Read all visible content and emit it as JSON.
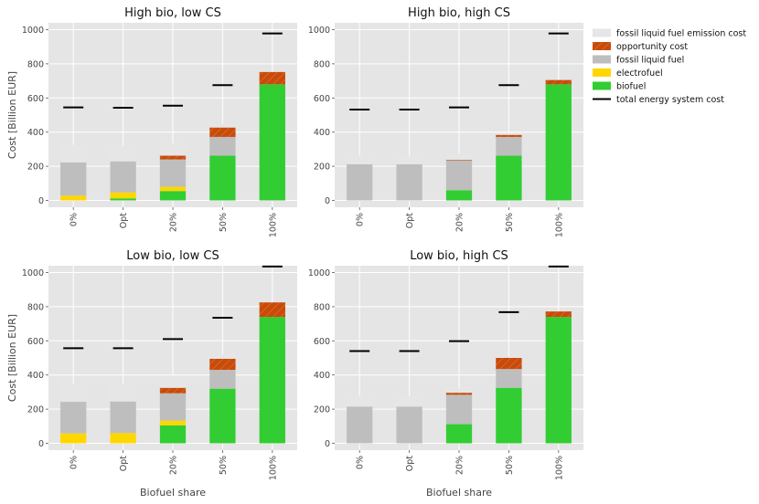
{
  "chart_data": {
    "type": "bar",
    "stacked": true,
    "figure_ylabel": "Cost [Billion EUR]",
    "figure_xlabel": "Biofuel share",
    "categories": [
      "0%",
      "Opt",
      "20%",
      "50%",
      "100%"
    ],
    "legend": [
      {
        "key": "emission",
        "label": "fossil liquid fuel emission cost",
        "color": "#e6e6e6",
        "kind": "patch"
      },
      {
        "key": "opportunity",
        "label": "opportunity cost",
        "color": "#c84b0a",
        "kind": "hatched"
      },
      {
        "key": "fossil",
        "label": "fossil liquid fuel",
        "color": "#bebebe",
        "kind": "patch"
      },
      {
        "key": "electrofuel",
        "label": "electrofuel",
        "color": "#ffd700",
        "kind": "patch"
      },
      {
        "key": "biofuel",
        "label": "biofuel",
        "color": "#32cd32",
        "kind": "patch"
      },
      {
        "key": "total",
        "label": "total energy system cost",
        "color": "#000000",
        "kind": "line"
      }
    ],
    "panels": [
      {
        "title": "High bio, low CS",
        "ylim": [
          -40,
          1040
        ],
        "yticks": [
          0,
          200,
          400,
          600,
          800,
          1000
        ],
        "stacks": {
          "biofuel": [
            0,
            12,
            55,
            262,
            680
          ],
          "electrofuel": [
            28,
            35,
            25,
            0,
            0
          ],
          "fossil": [
            195,
            182,
            160,
            110,
            0
          ],
          "opportunity": [
            0,
            0,
            22,
            55,
            72
          ],
          "emission": [
            102,
            92,
            72,
            22,
            0
          ]
        },
        "total": [
          545,
          543,
          555,
          675,
          978
        ]
      },
      {
        "title": "High bio, high CS",
        "ylim": [
          -40,
          1040
        ],
        "yticks": [
          0,
          200,
          400,
          600,
          800,
          1000
        ],
        "stacks": {
          "biofuel": [
            0,
            0,
            60,
            262,
            680
          ],
          "electrofuel": [
            0,
            0,
            0,
            0,
            0
          ],
          "fossil": [
            212,
            212,
            175,
            110,
            0
          ],
          "opportunity": [
            0,
            0,
            3,
            12,
            25
          ],
          "emission": [
            50,
            50,
            36,
            12,
            0
          ]
        },
        "total": [
          532,
          532,
          545,
          675,
          978
        ]
      },
      {
        "title": "Low bio, low CS",
        "ylim": [
          -40,
          1040
        ],
        "yticks": [
          0,
          200,
          400,
          600,
          800,
          1000
        ],
        "stacks": {
          "biofuel": [
            0,
            0,
            105,
            320,
            740
          ],
          "electrofuel": [
            58,
            60,
            28,
            0,
            0
          ],
          "fossil": [
            185,
            185,
            160,
            110,
            0
          ],
          "opportunity": [
            0,
            0,
            32,
            65,
            85
          ],
          "emission": [
            100,
            100,
            70,
            25,
            0
          ]
        },
        "total": [
          557,
          557,
          610,
          735,
          1035
        ]
      },
      {
        "title": "Low bio, high CS",
        "ylim": [
          -40,
          1040
        ],
        "yticks": [
          0,
          200,
          400,
          600,
          800,
          1000
        ],
        "stacks": {
          "biofuel": [
            0,
            0,
            112,
            325,
            740
          ],
          "electrofuel": [
            0,
            0,
            0,
            0,
            0
          ],
          "fossil": [
            215,
            215,
            172,
            110,
            0
          ],
          "opportunity": [
            0,
            0,
            12,
            65,
            32
          ],
          "emission": [
            62,
            62,
            25,
            10,
            0
          ]
        },
        "total": [
          540,
          540,
          598,
          768,
          1035
        ]
      }
    ]
  }
}
